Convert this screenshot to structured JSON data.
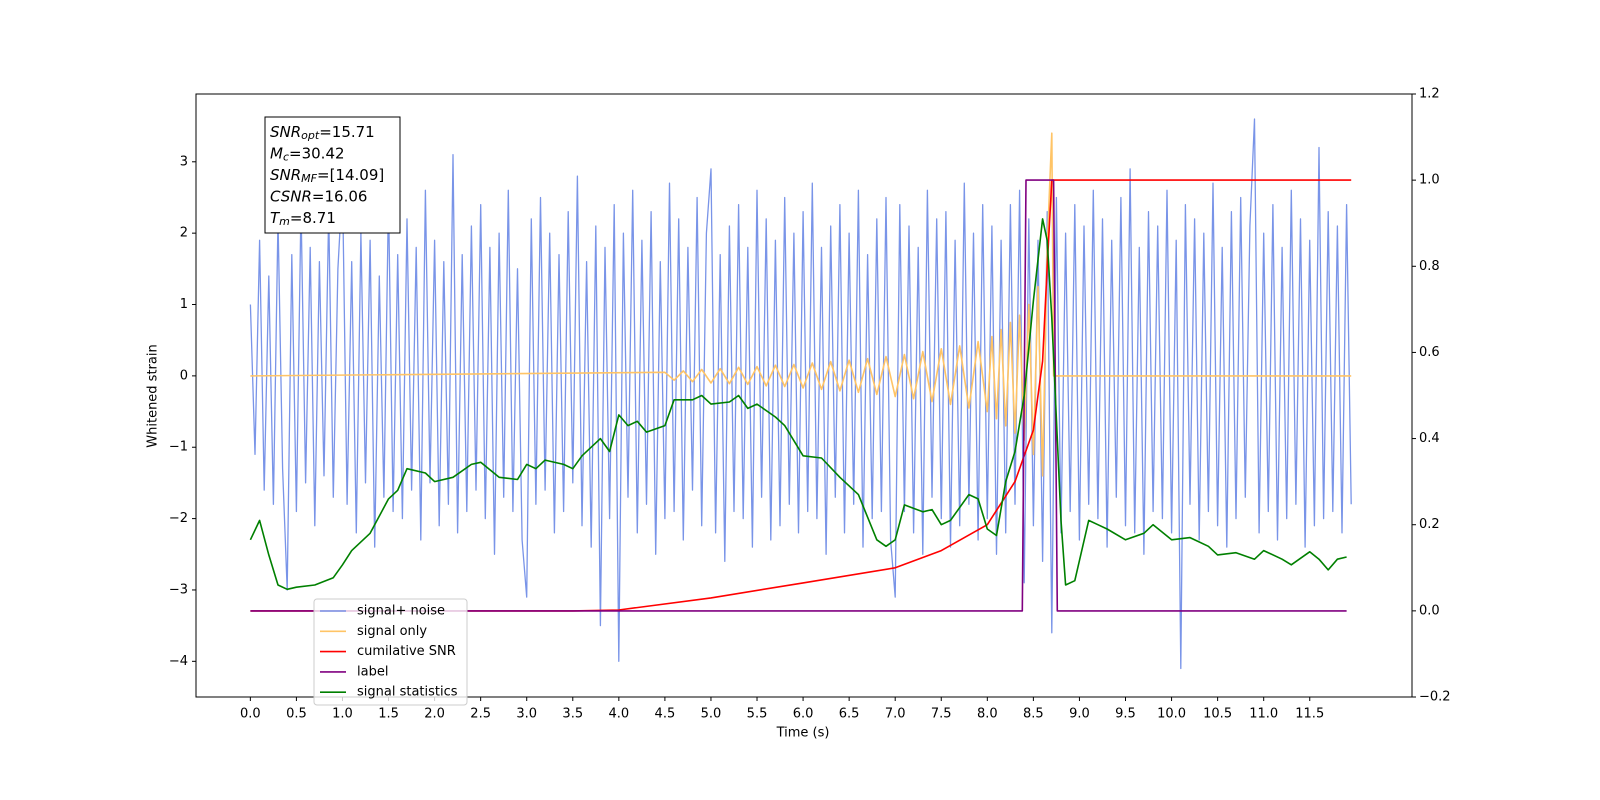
{
  "chart_data": {
    "type": "line",
    "xlabel": "Time (s)",
    "ylabel": "Whitened strain",
    "xlim": [
      -0.59,
      12.61
    ],
    "ylim": [
      -4.5,
      3.95
    ],
    "y2lim": [
      -0.2,
      1.2
    ],
    "xticks": [
      {
        "value": 0,
        "label": "0.0"
      },
      0.5,
      {
        "value": 1,
        "label": "1.0"
      },
      1.5,
      {
        "value": 2,
        "label": "2.0"
      },
      2.5,
      {
        "value": 3,
        "label": "3.0"
      },
      3.5,
      {
        "value": 4,
        "label": "4.0"
      },
      4.5,
      {
        "value": 5,
        "label": "5.0"
      },
      5.5,
      {
        "value": 6,
        "label": "6.0"
      },
      6.5,
      {
        "value": 7,
        "label": "7.0"
      },
      7.5,
      {
        "value": 8,
        "label": "8.0"
      },
      8.5,
      {
        "value": 9,
        "label": "9.0"
      },
      9.5,
      {
        "value": 10,
        "label": "10.0"
      },
      10.5,
      {
        "value": 11,
        "label": "11.0"
      },
      11.5
    ],
    "yticks": [
      {
        "value": -4,
        "label": "−4"
      },
      {
        "value": -3,
        "label": "−3"
      },
      {
        "value": -2,
        "label": "−2"
      },
      {
        "value": -1,
        "label": "−1"
      },
      0,
      1,
      2,
      3
    ],
    "y2ticks": [
      {
        "value": -0.2,
        "label": "−0.2"
      },
      {
        "value": 0,
        "label": "0.0"
      },
      0.2,
      0.4,
      0.6,
      0.8,
      {
        "value": 1,
        "label": "1.0"
      },
      1.2
    ],
    "legend": "lower left",
    "annotation": [
      {
        "name": "SNR",
        "sub": "opt",
        "text": "=15.71"
      },
      {
        "name": "M",
        "sub": "c",
        "text": "=30.42"
      },
      {
        "name": "SNR",
        "sub": "MF",
        "text": "=[14.09]"
      },
      {
        "name": "CSNR",
        "text": "=16.06"
      },
      {
        "name": "T",
        "sub": "m",
        "text": "=8.71"
      }
    ],
    "series": [
      {
        "name": "signal+ noise",
        "color": "#7994e8",
        "axis": "y",
        "x": [
          0,
          0.05,
          0.1,
          0.15,
          0.2,
          0.25,
          0.3,
          0.35,
          0.4,
          0.45,
          0.5,
          0.55,
          0.6,
          0.65,
          0.7,
          0.75,
          0.8,
          0.85,
          0.9,
          0.95,
          1,
          1.05,
          1.1,
          1.15,
          1.2,
          1.25,
          1.3,
          1.35,
          1.4,
          1.45,
          1.5,
          1.55,
          1.6,
          1.65,
          1.7,
          1.75,
          1.8,
          1.85,
          1.9,
          1.95,
          2,
          2.05,
          2.1,
          2.15,
          2.2,
          2.25,
          2.3,
          2.35,
          2.4,
          2.45,
          2.5,
          2.55,
          2.6,
          2.65,
          2.7,
          2.75,
          2.8,
          2.85,
          2.9,
          2.95,
          3,
          3.05,
          3.1,
          3.15,
          3.2,
          3.25,
          3.3,
          3.35,
          3.4,
          3.45,
          3.5,
          3.55,
          3.6,
          3.65,
          3.7,
          3.75,
          3.8,
          3.85,
          3.9,
          3.95,
          4,
          4.05,
          4.1,
          4.15,
          4.2,
          4.25,
          4.3,
          4.35,
          4.4,
          4.45,
          4.5,
          4.55,
          4.6,
          4.65,
          4.7,
          4.75,
          4.8,
          4.85,
          4.9,
          4.95,
          5,
          5.05,
          5.1,
          5.15,
          5.2,
          5.25,
          5.3,
          5.35,
          5.4,
          5.45,
          5.5,
          5.55,
          5.6,
          5.65,
          5.7,
          5.75,
          5.8,
          5.85,
          5.9,
          5.95,
          6,
          6.05,
          6.1,
          6.15,
          6.2,
          6.25,
          6.3,
          6.35,
          6.4,
          6.45,
          6.5,
          6.55,
          6.6,
          6.65,
          6.7,
          6.75,
          6.8,
          6.85,
          6.9,
          6.95,
          7,
          7.05,
          7.1,
          7.15,
          7.2,
          7.25,
          7.3,
          7.35,
          7.4,
          7.45,
          7.5,
          7.55,
          7.6,
          7.65,
          7.7,
          7.75,
          7.8,
          7.85,
          7.9,
          7.95,
          8,
          8.05,
          8.1,
          8.15,
          8.2,
          8.25,
          8.3,
          8.35,
          8.4,
          8.45,
          8.5,
          8.55,
          8.6,
          8.65,
          8.7,
          8.75,
          8.8,
          8.85,
          8.9,
          8.95,
          9,
          9.05,
          9.1,
          9.15,
          9.2,
          9.25,
          9.3,
          9.35,
          9.4,
          9.45,
          9.5,
          9.55,
          9.6,
          9.65,
          9.7,
          9.75,
          9.8,
          9.85,
          9.9,
          9.95,
          10,
          10.05,
          10.1,
          10.15,
          10.2,
          10.25,
          10.3,
          10.35,
          10.4,
          10.45,
          10.5,
          10.55,
          10.6,
          10.65,
          10.7,
          10.75,
          10.8,
          10.85,
          10.9,
          10.95,
          11,
          11.05,
          11.1,
          11.15,
          11.2,
          11.25,
          11.3,
          11.35,
          11.4,
          11.45,
          11.5,
          11.55,
          11.6,
          11.65,
          11.7,
          11.75,
          11.8,
          11.85,
          11.9,
          11.95
        ],
        "values": [
          1.0,
          -1.1,
          1.9,
          -1.6,
          1.4,
          -1.8,
          2.2,
          -1.3,
          -3.0,
          1.7,
          -1.9,
          2.4,
          -1.5,
          1.8,
          -2.1,
          1.6,
          -1.4,
          2.3,
          -1.7,
          1.5,
          2.7,
          -1.8,
          1.6,
          -2.2,
          2.0,
          -1.5,
          1.9,
          -2.4,
          1.4,
          -1.7,
          2.5,
          -1.9,
          1.7,
          -2.0,
          2.2,
          -1.6,
          1.8,
          -2.3,
          2.6,
          -1.5,
          1.9,
          -2.1,
          1.6,
          -1.8,
          3.1,
          -2.2,
          1.7,
          -1.9,
          2.1,
          -1.6,
          2.4,
          -2.0,
          1.8,
          -2.5,
          2.0,
          -1.7,
          2.6,
          -1.9,
          1.5,
          -2.3,
          -3.1,
          2.2,
          -1.8,
          2.5,
          -1.6,
          2.0,
          -2.2,
          1.7,
          -1.9,
          2.3,
          -1.5,
          2.8,
          -2.1,
          1.6,
          -2.4,
          2.1,
          -3.5,
          1.8,
          -2.0,
          2.4,
          -4.0,
          2.0,
          -1.7,
          2.6,
          -2.2,
          1.9,
          -1.8,
          2.3,
          -2.5,
          1.6,
          -2.0,
          2.7,
          -1.9,
          2.2,
          -2.3,
          1.8,
          -1.6,
          2.5,
          -2.1,
          2.0,
          2.9,
          -2.2,
          1.7,
          -2.6,
          2.1,
          -1.9,
          2.4,
          -2.0,
          1.8,
          -2.4,
          2.6,
          -1.7,
          2.2,
          -2.3,
          1.9,
          -2.1,
          2.5,
          -1.8,
          2.0,
          -2.2,
          2.3,
          -1.9,
          2.7,
          -2.0,
          1.8,
          -2.5,
          2.1,
          -1.7,
          2.4,
          -2.2,
          2.0,
          -1.8,
          2.6,
          -2.4,
          1.7,
          -2.0,
          2.2,
          -1.9,
          2.5,
          -2.3,
          -3.1,
          2.4,
          -1.9,
          2.1,
          -2.2,
          1.8,
          -2.5,
          2.6,
          -1.7,
          2.2,
          -2.0,
          2.3,
          -2.4,
          1.9,
          -2.1,
          2.7,
          -1.8,
          2.0,
          -2.3,
          2.4,
          -2.0,
          2.1,
          -2.5,
          1.9,
          -2.2,
          2.4,
          -1.8,
          2.6,
          -2.9,
          2.2,
          -2.1,
          1.9,
          -2.6,
          2.3,
          -3.6,
          2.5,
          -2.2,
          2.0,
          -1.9,
          2.4,
          -2.3,
          2.1,
          -1.8,
          2.6,
          -2.0,
          2.2,
          -2.4,
          1.9,
          -1.7,
          2.5,
          -2.1,
          2.9,
          -2.2,
          1.8,
          -2.5,
          2.3,
          -1.9,
          2.1,
          -2.0,
          2.6,
          -2.2,
          1.9,
          -4.1,
          2.4,
          -1.8,
          2.2,
          -2.3,
          2.0,
          -1.9,
          2.7,
          -2.1,
          1.8,
          -2.4,
          2.3,
          -2.0,
          2.5,
          -1.7,
          2.1,
          3.6,
          -2.2,
          2.0,
          -1.9,
          2.4,
          -2.3,
          1.8,
          -2.0,
          2.6,
          -1.8,
          2.2,
          -2.4,
          1.9,
          -2.1,
          3.2,
          -2.0,
          2.3,
          -1.9,
          2.1,
          -2.2,
          2.4,
          -1.8
        ]
      },
      {
        "name": "signal only",
        "color": "#ffc466",
        "axis": "y",
        "x": [
          0,
          4.5,
          4.6,
          4.7,
          4.8,
          4.9,
          5,
          5.1,
          5.2,
          5.3,
          5.4,
          5.5,
          5.6,
          5.7,
          5.8,
          5.9,
          6,
          6.1,
          6.2,
          6.3,
          6.4,
          6.5,
          6.6,
          6.7,
          6.8,
          6.9,
          7,
          7.1,
          7.2,
          7.3,
          7.4,
          7.5,
          7.6,
          7.7,
          7.8,
          7.9,
          8,
          8.05,
          8.1,
          8.15,
          8.2,
          8.25,
          8.3,
          8.35,
          8.4,
          8.45,
          8.5,
          8.55,
          8.6,
          8.65,
          8.7,
          8.72,
          11.95
        ],
        "values": [
          0,
          0.05,
          -0.06,
          0.07,
          -0.08,
          0.09,
          -0.1,
          0.1,
          -0.11,
          0.12,
          -0.12,
          0.13,
          -0.14,
          0.15,
          -0.15,
          0.16,
          -0.17,
          0.18,
          -0.19,
          0.2,
          -0.21,
          0.22,
          -0.23,
          0.24,
          -0.26,
          0.27,
          -0.29,
          0.3,
          -0.32,
          0.34,
          -0.36,
          0.38,
          -0.4,
          0.42,
          -0.45,
          0.48,
          -0.5,
          0.55,
          -0.6,
          0.65,
          -0.7,
          0.75,
          -0.8,
          0.85,
          -0.9,
          1.0,
          -1.1,
          1.25,
          -1.4,
          1.8,
          3.4,
          0,
          0
        ]
      },
      {
        "name": "cumilative SNR",
        "color": "#ff0000",
        "axis": "y2",
        "x": [
          0,
          3.5,
          4.0,
          5.0,
          6.0,
          7.0,
          7.5,
          8.0,
          8.3,
          8.5,
          8.6,
          8.65,
          8.7,
          11.95
        ],
        "values": [
          0,
          0,
          0.002,
          0.03,
          0.065,
          0.1,
          0.14,
          0.2,
          0.3,
          0.42,
          0.58,
          0.8,
          1.0,
          1.0
        ]
      },
      {
        "name": "label",
        "color": "#800080",
        "axis": "y2",
        "x": [
          0,
          8.38,
          8.42,
          8.72,
          8.76,
          11.9
        ],
        "values": [
          0,
          0,
          1,
          1,
          0,
          0
        ]
      },
      {
        "name": "signal statistics",
        "color": "#008000",
        "axis": "y2",
        "x": [
          0,
          0.1,
          0.2,
          0.3,
          0.4,
          0.5,
          0.7,
          0.9,
          1.0,
          1.1,
          1.3,
          1.5,
          1.6,
          1.7,
          1.9,
          2.0,
          2.2,
          2.4,
          2.5,
          2.7,
          2.9,
          3.0,
          3.1,
          3.2,
          3.4,
          3.5,
          3.6,
          3.8,
          3.9,
          4.0,
          4.1,
          4.2,
          4.3,
          4.5,
          4.6,
          4.8,
          4.9,
          5.0,
          5.2,
          5.3,
          5.4,
          5.5,
          5.7,
          5.8,
          6.0,
          6.2,
          6.4,
          6.6,
          6.8,
          6.9,
          7.0,
          7.1,
          7.3,
          7.4,
          7.5,
          7.6,
          7.8,
          7.9,
          8.0,
          8.1,
          8.2,
          8.3,
          8.4,
          8.5,
          8.6,
          8.65,
          8.7,
          8.8,
          8.85,
          8.95,
          9.1,
          9.2,
          9.3,
          9.5,
          9.7,
          9.8,
          10.0,
          10.2,
          10.4,
          10.5,
          10.7,
          10.9,
          11.0,
          11.2,
          11.3,
          11.5,
          11.6,
          11.7,
          11.8,
          11.9
        ],
        "values": [
          0.165,
          0.21,
          0.13,
          0.06,
          0.05,
          0.055,
          0.06,
          0.077,
          0.107,
          0.14,
          0.18,
          0.26,
          0.28,
          0.33,
          0.32,
          0.3,
          0.31,
          0.34,
          0.345,
          0.31,
          0.305,
          0.34,
          0.33,
          0.35,
          0.34,
          0.33,
          0.36,
          0.4,
          0.37,
          0.455,
          0.43,
          0.44,
          0.415,
          0.43,
          0.49,
          0.49,
          0.5,
          0.48,
          0.485,
          0.5,
          0.47,
          0.48,
          0.45,
          0.43,
          0.36,
          0.355,
          0.31,
          0.27,
          0.165,
          0.15,
          0.165,
          0.246,
          0.23,
          0.235,
          0.2,
          0.21,
          0.27,
          0.26,
          0.19,
          0.175,
          0.3,
          0.37,
          0.5,
          0.72,
          0.91,
          0.86,
          0.68,
          0.21,
          0.06,
          0.07,
          0.21,
          0.2,
          0.19,
          0.165,
          0.18,
          0.2,
          0.165,
          0.17,
          0.15,
          0.13,
          0.135,
          0.12,
          0.14,
          0.12,
          0.107,
          0.137,
          0.12,
          0.095,
          0.12,
          0.125
        ]
      }
    ]
  }
}
